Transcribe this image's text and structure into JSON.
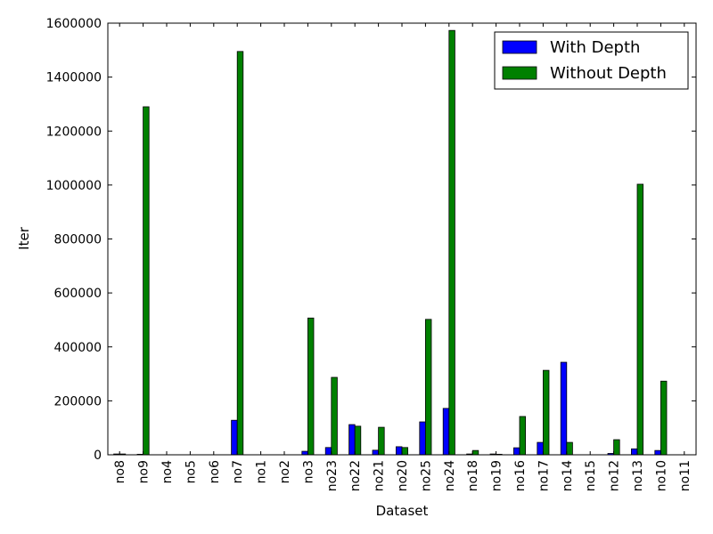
{
  "chart_data": {
    "type": "bar",
    "title": "",
    "xlabel": "Dataset",
    "ylabel": "Iter",
    "ylim": [
      0,
      1600000
    ],
    "yticks": [
      0,
      200000,
      400000,
      600000,
      800000,
      1000000,
      1200000,
      1400000,
      1600000
    ],
    "grid": false,
    "legend_position": "top-right",
    "categories": [
      "no8",
      "no9",
      "no4",
      "no5",
      "no6",
      "no7",
      "no1",
      "no2",
      "no3",
      "no23",
      "no22",
      "no21",
      "no20",
      "no25",
      "no24",
      "no18",
      "no19",
      "no16",
      "no17",
      "no14",
      "no15",
      "no12",
      "no13",
      "no10",
      "no11"
    ],
    "series": [
      {
        "name": "With Depth",
        "color": "#0000ff",
        "values": [
          3000,
          2000,
          0,
          0,
          0,
          128000,
          0,
          0,
          13000,
          27000,
          112000,
          17000,
          30000,
          122000,
          172000,
          3000,
          3000,
          26000,
          46000,
          343000,
          0,
          5000,
          22000,
          16000,
          0
        ]
      },
      {
        "name": "Without Depth",
        "color": "#008000",
        "values": [
          3000,
          1290000,
          0,
          0,
          0,
          1495000,
          0,
          0,
          507000,
          287000,
          106000,
          102000,
          27000,
          502000,
          1573000,
          16000,
          2000,
          142000,
          313000,
          46000,
          0,
          56000,
          1003000,
          273000,
          0
        ]
      }
    ]
  }
}
